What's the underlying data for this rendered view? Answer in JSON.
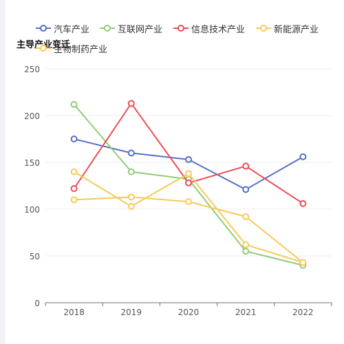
{
  "chart_data": {
    "type": "line",
    "title": "主导产业变迁",
    "xlabel": "",
    "ylabel": "",
    "categories": [
      "2018",
      "2019",
      "2020",
      "2021",
      "2022"
    ],
    "ylim": [
      0,
      250
    ],
    "yticks": [
      0,
      50,
      100,
      150,
      200,
      250
    ],
    "grid": true,
    "legend_position": "top",
    "series": [
      {
        "name": "汽车产业",
        "color": "#5470c6",
        "values": [
          175,
          160,
          153,
          121,
          156
        ]
      },
      {
        "name": "互联网产业",
        "color": "#91cc75",
        "values": [
          212,
          140,
          132,
          55,
          40
        ]
      },
      {
        "name": "信息技术产业",
        "color": "#ee4d55",
        "values": [
          122,
          213,
          128,
          146,
          106
        ]
      },
      {
        "name": "新能源产业",
        "color": "#fac858",
        "values": [
          140,
          103,
          138,
          62,
          43
        ]
      },
      {
        "name": "生物制药产业",
        "color": "#fac858",
        "values": [
          110,
          113,
          108,
          92,
          43
        ]
      }
    ]
  }
}
